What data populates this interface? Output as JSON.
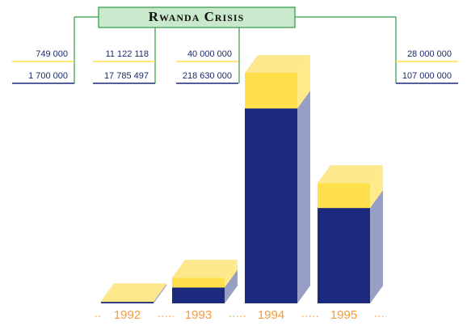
{
  "chart_data": {
    "type": "bar3d",
    "title": "Rwanda Crisis",
    "categories": [
      "1992",
      "1993",
      "1994",
      "1995"
    ],
    "series": [
      {
        "color": "#ffe04a",
        "values": [
          749000,
          11122118,
          40000000,
          28000000
        ],
        "value_labels": [
          "749 000",
          "11 122 118",
          "40 000 000",
          "28 000 000"
        ]
      },
      {
        "color": "#1b2a7c",
        "values": [
          1700000,
          17785497,
          218630000,
          107000000
        ],
        "value_labels": [
          "1 700 000",
          "17 785 497",
          "218 630 000",
          "107 000 000"
        ]
      }
    ]
  }
}
